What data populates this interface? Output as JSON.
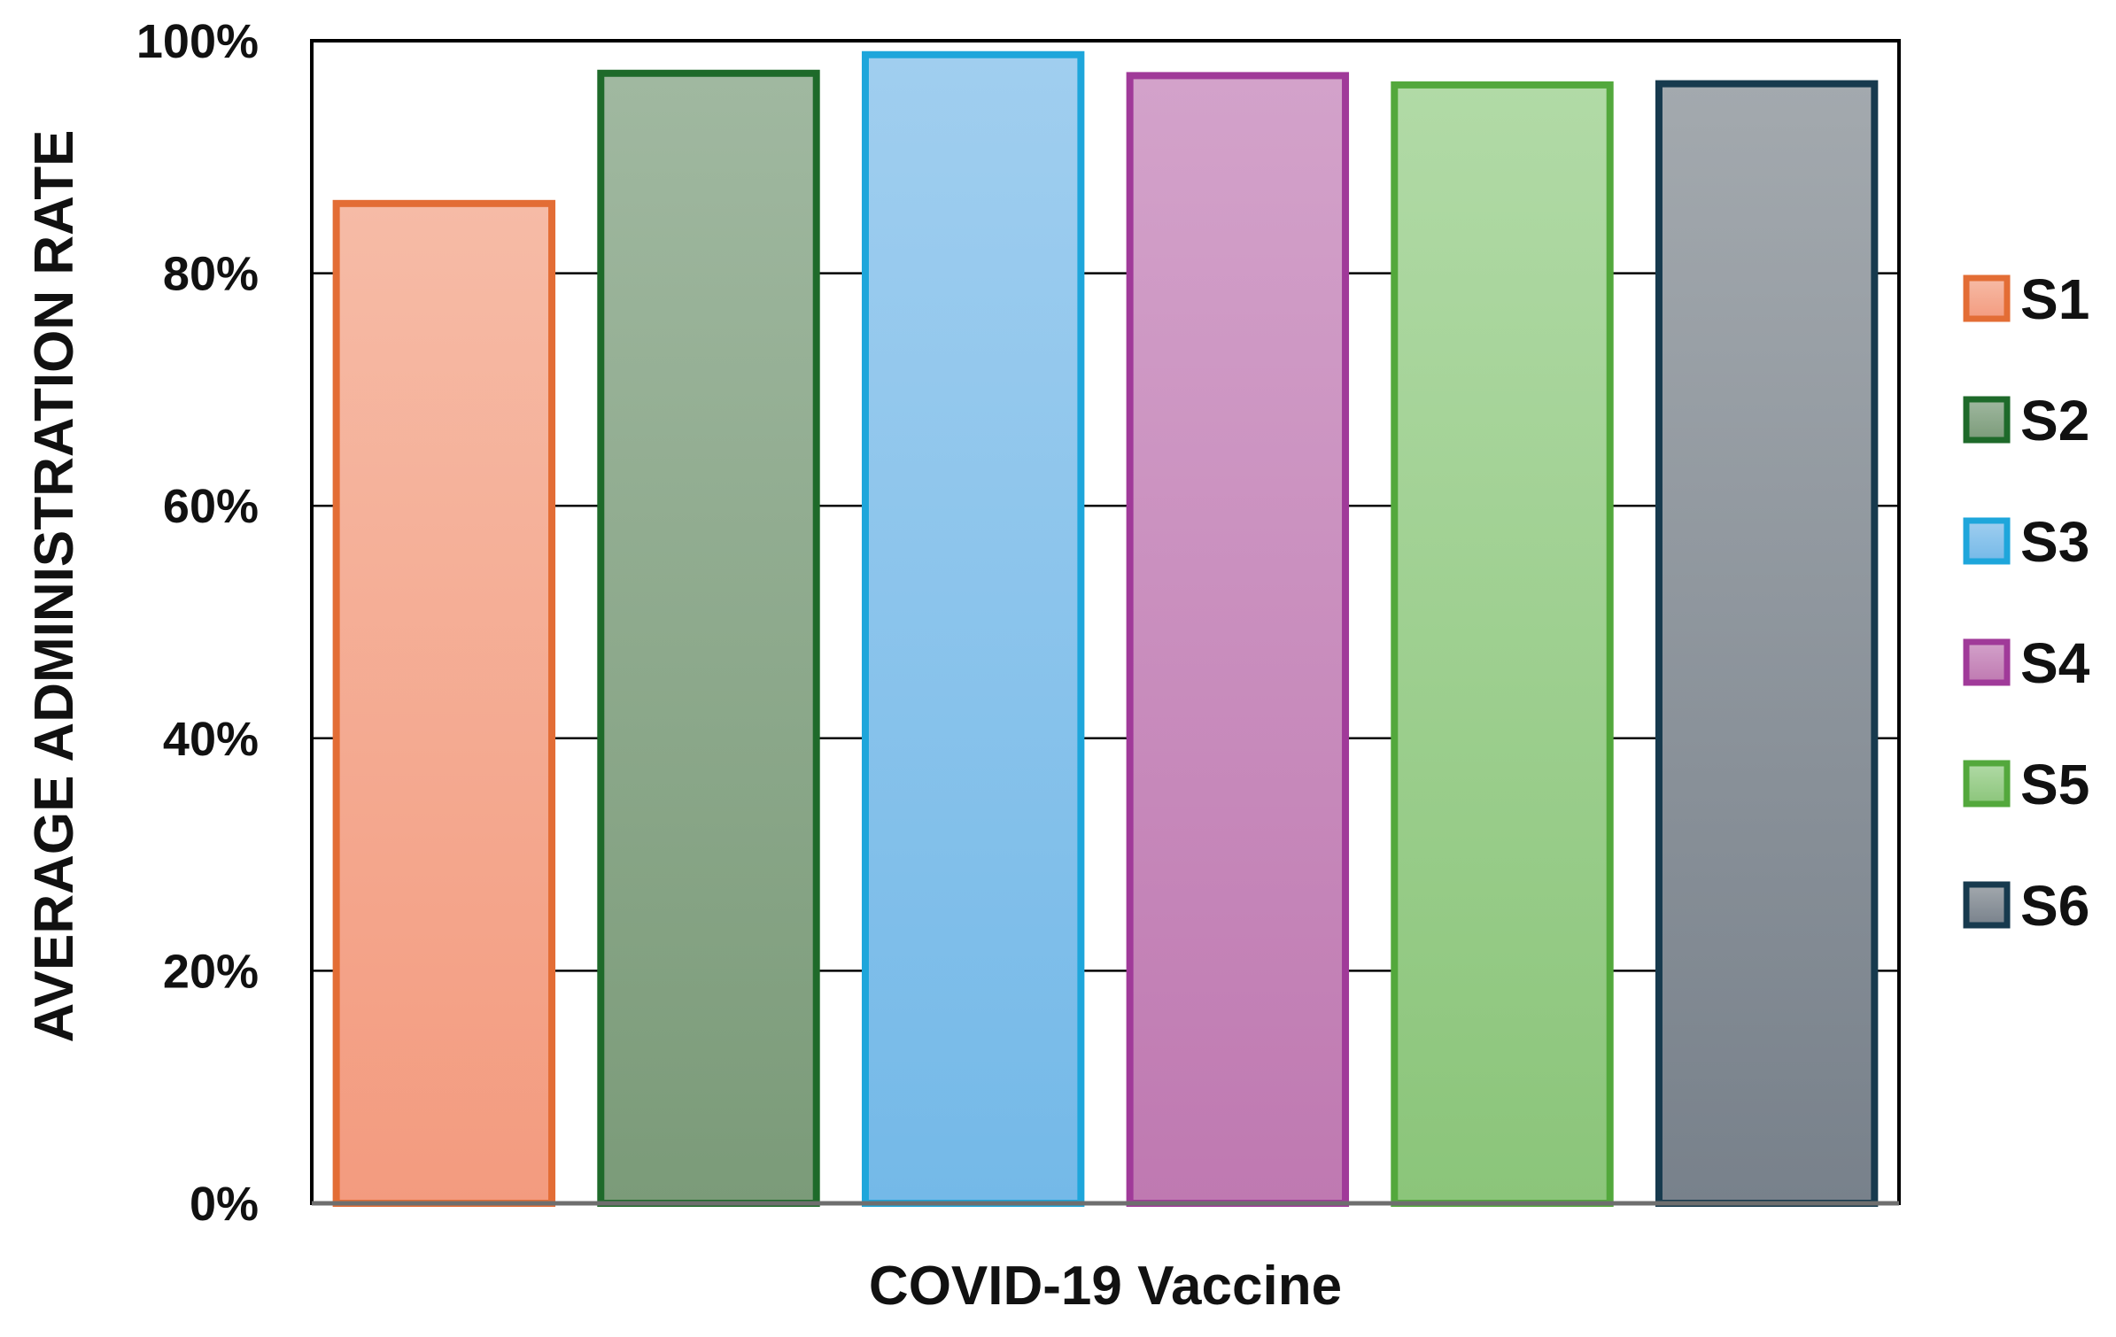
{
  "chart_data": {
    "type": "bar",
    "title": "",
    "xlabel": "COVID-19 Vaccine",
    "ylabel": "AVERAGE ADMINISTRATION RATE",
    "ylim": [
      0,
      100
    ],
    "yticks": [
      0,
      20,
      40,
      60,
      80,
      100
    ],
    "ytick_suffix": "%",
    "grid": true,
    "legend_position": "right",
    "series": [
      {
        "name": "S1",
        "value": 86,
        "fill_top": "#f6bba6",
        "fill_bottom": "#f39b7f",
        "stroke": "#e36d35"
      },
      {
        "name": "S2",
        "value": 97.2,
        "fill_top": "#a0b8a0",
        "fill_bottom": "#7b9b79",
        "stroke": "#1e6a2a"
      },
      {
        "name": "S3",
        "value": 98.8,
        "fill_top": "#a0ceef",
        "fill_bottom": "#74b9e8",
        "stroke": "#1ea6db"
      },
      {
        "name": "S4",
        "value": 97,
        "fill_top": "#d3a2ca",
        "fill_bottom": "#bf79b1",
        "stroke": "#a03a99"
      },
      {
        "name": "S5",
        "value": 96.2,
        "fill_top": "#b1daa6",
        "fill_bottom": "#8bc57a",
        "stroke": "#53a83c"
      },
      {
        "name": "S6",
        "value": 96.3,
        "fill_top": "#a3a9ae",
        "fill_bottom": "#78818b",
        "stroke": "#173a4e"
      }
    ]
  }
}
